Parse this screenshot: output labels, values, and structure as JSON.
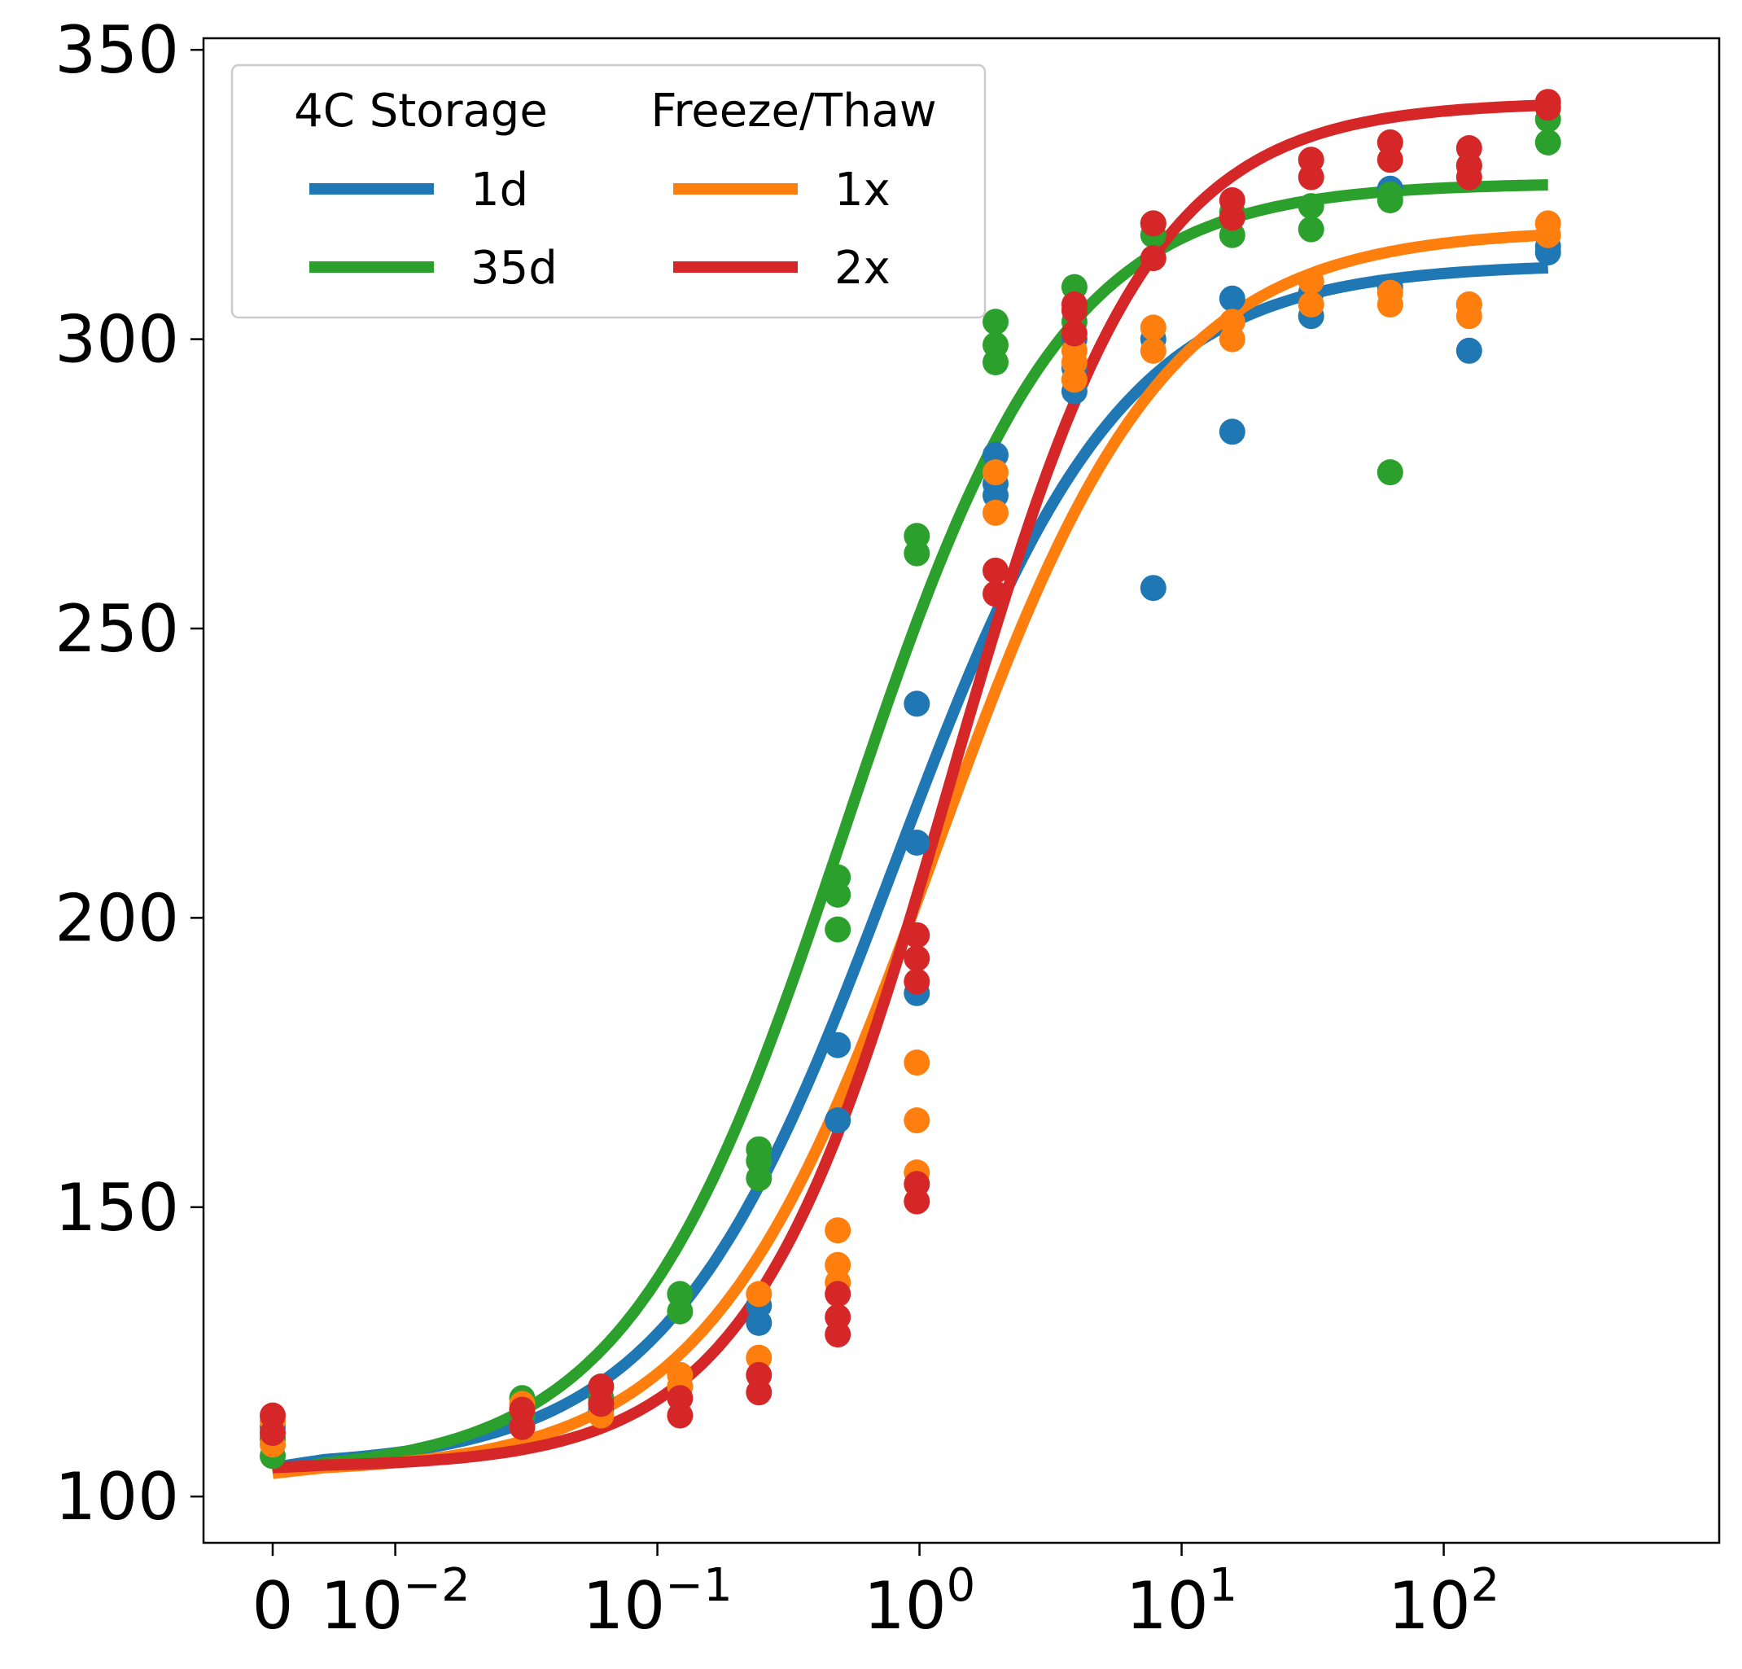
{
  "chart_data": {
    "type": "scatter",
    "title": "",
    "xlabel": "",
    "ylabel": "",
    "xscale": "symlog",
    "x_ticks": [
      {
        "value": 0,
        "base": "0",
        "exp": ""
      },
      {
        "value": 0.01,
        "base": "10",
        "exp": "−2"
      },
      {
        "value": 0.1,
        "base": "10",
        "exp": "−1"
      },
      {
        "value": 1,
        "base": "10",
        "exp": "0"
      },
      {
        "value": 10,
        "base": "10",
        "exp": "1"
      },
      {
        "value": 100,
        "base": "10",
        "exp": "2"
      }
    ],
    "y_ticks": [
      100,
      150,
      200,
      250,
      300,
      350
    ],
    "ylim": [
      92,
      352
    ],
    "grid": false,
    "legend": {
      "placement": "top-left",
      "columns": [
        {
          "title": "4C Storage",
          "entries": [
            {
              "label": "1d",
              "color": "#1f77b4"
            },
            {
              "label": "35d",
              "color": "#2ca02c"
            }
          ]
        },
        {
          "title": "Freeze/Thaw",
          "entries": [
            {
              "label": "1x",
              "color": "#ff7f0e"
            },
            {
              "label": "2x",
              "color": "#d62728"
            }
          ]
        }
      ]
    },
    "series": [
      {
        "name": "1d",
        "color": "#1f77b4",
        "fit": {
          "bottom": 105,
          "top": 313,
          "ec50": 0.8,
          "hill": 1.0
        },
        "points": [
          [
            0,
            110
          ],
          [
            0,
            112
          ],
          [
            0.0305,
            115
          ],
          [
            0.0305,
            113
          ],
          [
            0.061,
            117
          ],
          [
            0.061,
            115
          ],
          [
            0.122,
            121
          ],
          [
            0.122,
            119
          ],
          [
            0.244,
            133
          ],
          [
            0.244,
            130
          ],
          [
            0.488,
            178
          ],
          [
            0.488,
            165
          ],
          [
            0.977,
            237
          ],
          [
            0.977,
            213
          ],
          [
            0.977,
            187
          ],
          [
            1.95,
            280
          ],
          [
            1.95,
            275
          ],
          [
            1.95,
            273
          ],
          [
            3.9,
            300
          ],
          [
            3.9,
            295
          ],
          [
            3.9,
            291
          ],
          [
            7.8,
            257
          ],
          [
            7.8,
            300
          ],
          [
            15.6,
            307
          ],
          [
            15.6,
            284
          ],
          [
            31.2,
            308
          ],
          [
            31.2,
            304
          ],
          [
            62.5,
            309
          ],
          [
            62.5,
            326
          ],
          [
            125,
            298
          ],
          [
            125,
            306
          ],
          [
            250,
            315
          ],
          [
            250,
            316
          ]
        ]
      },
      {
        "name": "35d",
        "color": "#2ca02c",
        "fit": {
          "bottom": 104,
          "top": 327,
          "ec50": 0.52,
          "hill": 1.05
        },
        "points": [
          [
            0,
            107
          ],
          [
            0,
            110
          ],
          [
            0.0305,
            117
          ],
          [
            0.0305,
            114
          ],
          [
            0.061,
            119
          ],
          [
            0.061,
            117
          ],
          [
            0.122,
            135
          ],
          [
            0.122,
            132
          ],
          [
            0.244,
            160
          ],
          [
            0.244,
            158
          ],
          [
            0.244,
            155
          ],
          [
            0.488,
            207
          ],
          [
            0.488,
            204
          ],
          [
            0.488,
            198
          ],
          [
            0.977,
            266
          ],
          [
            0.977,
            263
          ],
          [
            1.95,
            303
          ],
          [
            1.95,
            299
          ],
          [
            1.95,
            296
          ],
          [
            3.9,
            309
          ],
          [
            3.9,
            303
          ],
          [
            3.9,
            293
          ],
          [
            7.8,
            320
          ],
          [
            7.8,
            318
          ],
          [
            15.6,
            322
          ],
          [
            15.6,
            318
          ],
          [
            31.2,
            323
          ],
          [
            31.2,
            319
          ],
          [
            62.5,
            325
          ],
          [
            62.5,
            324
          ],
          [
            62.5,
            277
          ],
          [
            125,
            330
          ],
          [
            250,
            338
          ],
          [
            250,
            334
          ]
        ]
      },
      {
        "name": "1x",
        "color": "#ff7f0e",
        "fit": {
          "bottom": 104,
          "top": 319,
          "ec50": 1.15,
          "hill": 1.0
        },
        "points": [
          [
            0,
            109
          ],
          [
            0,
            113
          ],
          [
            0.0305,
            116
          ],
          [
            0.0305,
            112
          ],
          [
            0.061,
            116
          ],
          [
            0.061,
            114
          ],
          [
            0.122,
            121
          ],
          [
            0.122,
            119
          ],
          [
            0.244,
            135
          ],
          [
            0.244,
            124
          ],
          [
            0.488,
            146
          ],
          [
            0.488,
            140
          ],
          [
            0.488,
            137
          ],
          [
            0.977,
            175
          ],
          [
            0.977,
            165
          ],
          [
            0.977,
            156
          ],
          [
            1.95,
            277
          ],
          [
            1.95,
            270
          ],
          [
            3.9,
            298
          ],
          [
            3.9,
            296
          ],
          [
            3.9,
            293
          ],
          [
            7.8,
            302
          ],
          [
            7.8,
            298
          ],
          [
            15.6,
            303
          ],
          [
            15.6,
            300
          ],
          [
            31.2,
            310
          ],
          [
            31.2,
            306
          ],
          [
            62.5,
            308
          ],
          [
            62.5,
            306
          ],
          [
            125,
            306
          ],
          [
            125,
            304
          ],
          [
            250,
            320
          ],
          [
            250,
            318
          ]
        ]
      },
      {
        "name": "2x",
        "color": "#d62728",
        "fit": {
          "bottom": 105,
          "top": 341,
          "ec50": 1.3,
          "hill": 1.15
        },
        "points": [
          [
            0,
            114
          ],
          [
            0,
            111
          ],
          [
            0.0305,
            115
          ],
          [
            0.0305,
            112
          ],
          [
            0.061,
            119
          ],
          [
            0.061,
            116
          ],
          [
            0.122,
            117
          ],
          [
            0.122,
            114
          ],
          [
            0.244,
            121
          ],
          [
            0.244,
            118
          ],
          [
            0.488,
            135
          ],
          [
            0.488,
            131
          ],
          [
            0.488,
            128
          ],
          [
            0.977,
            154
          ],
          [
            0.977,
            151
          ],
          [
            0.977,
            197
          ],
          [
            0.977,
            193
          ],
          [
            0.977,
            189
          ],
          [
            1.95,
            260
          ],
          [
            1.95,
            256
          ],
          [
            3.9,
            306
          ],
          [
            3.9,
            305
          ],
          [
            3.9,
            301
          ],
          [
            7.8,
            320
          ],
          [
            7.8,
            314
          ],
          [
            15.6,
            324
          ],
          [
            15.6,
            321
          ],
          [
            31.2,
            331
          ],
          [
            31.2,
            328
          ],
          [
            62.5,
            334
          ],
          [
            62.5,
            331
          ],
          [
            125,
            333
          ],
          [
            125,
            330
          ],
          [
            125,
            328
          ],
          [
            250,
            341
          ],
          [
            250,
            340
          ]
        ]
      }
    ]
  }
}
